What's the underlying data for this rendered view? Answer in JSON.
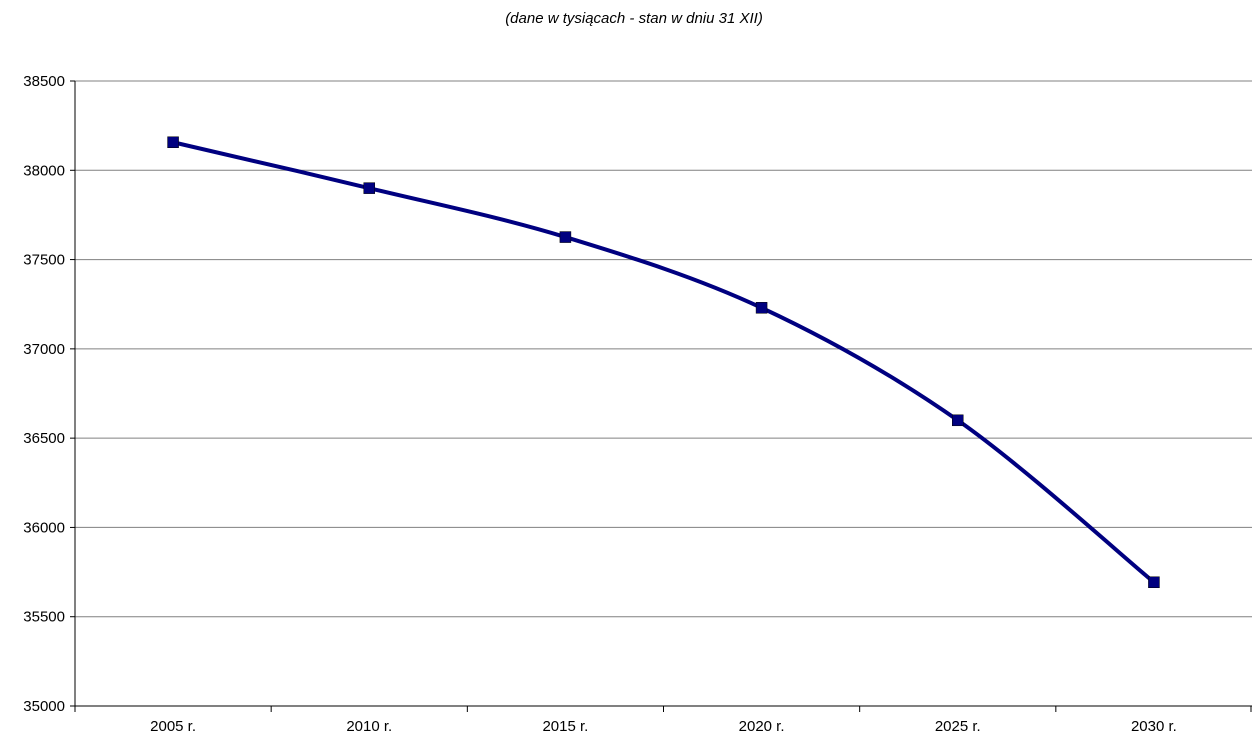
{
  "chart_data": {
    "type": "line",
    "title": "",
    "subtitle": "(dane w tysiącach - stan w dniu 31 XII)",
    "xlabel": "",
    "ylabel": "",
    "categories": [
      "2005 r.",
      "2010 r.",
      "2015 r.",
      "2020 r.",
      "2025 r.",
      "2030 r."
    ],
    "series": [
      {
        "values": [
          38157,
          37900,
          37626,
          37230,
          36600,
          35693
        ],
        "color": "#000080",
        "marker": "square",
        "smooth": true
      }
    ],
    "ylim": [
      35000,
      38500
    ],
    "yticks": [
      35000,
      35500,
      36000,
      36500,
      37000,
      37500,
      38000,
      38500
    ],
    "grid": "horizontal",
    "legend": "none"
  }
}
